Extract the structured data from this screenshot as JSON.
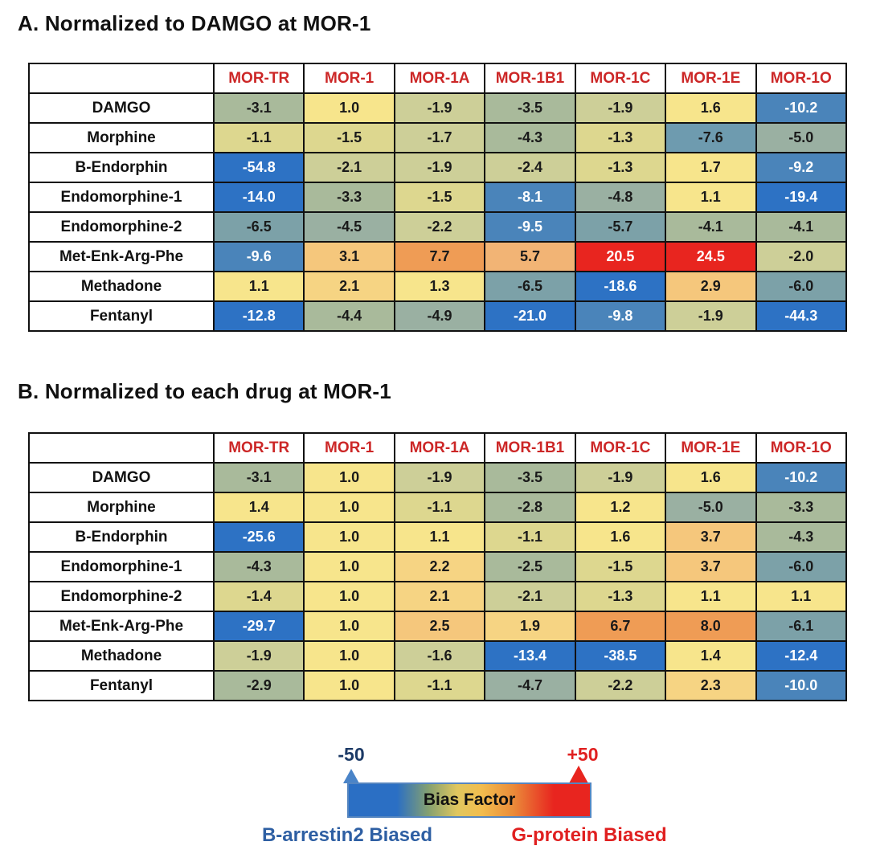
{
  "chart_data": [
    {
      "type": "heatmap",
      "title": "A. Normalized to DAMGO at MOR-1",
      "columns": [
        "MOR-TR",
        "MOR-1",
        "MOR-1A",
        "MOR-1B1",
        "MOR-1C",
        "MOR-1E",
        "MOR-1O"
      ],
      "rows": [
        {
          "label": "DAMGO",
          "values": [
            -3.1,
            1.0,
            -1.9,
            -3.5,
            -1.9,
            1.6,
            -10.2
          ]
        },
        {
          "label": "Morphine",
          "values": [
            -1.1,
            -1.5,
            -1.7,
            -4.3,
            -1.3,
            -7.6,
            -5.0
          ]
        },
        {
          "label": "B-Endorphin",
          "values": [
            -54.8,
            -2.1,
            -1.9,
            -2.4,
            -1.3,
            1.7,
            -9.2
          ]
        },
        {
          "label": "Endomorphine-1",
          "values": [
            -14.0,
            -3.3,
            -1.5,
            -8.1,
            -4.8,
            1.1,
            -19.4
          ]
        },
        {
          "label": "Endomorphine-2",
          "values": [
            -6.5,
            -4.5,
            -2.2,
            -9.5,
            -5.7,
            -4.1,
            -4.1
          ]
        },
        {
          "label": "Met-Enk-Arg-Phe",
          "values": [
            -9.6,
            3.1,
            7.7,
            5.7,
            20.5,
            24.5,
            -2.0
          ]
        },
        {
          "label": "Methadone",
          "values": [
            1.1,
            2.1,
            1.3,
            -6.5,
            -18.6,
            2.9,
            -6.0
          ]
        },
        {
          "label": "Fentanyl",
          "values": [
            -12.8,
            -4.4,
            -4.9,
            -21.0,
            -9.8,
            -1.9,
            -44.3
          ]
        }
      ],
      "value_range": [
        -50,
        50
      ],
      "grid": true,
      "legend_position": "bottom"
    },
    {
      "type": "heatmap",
      "title": "B. Normalized to each drug at MOR-1",
      "columns": [
        "MOR-TR",
        "MOR-1",
        "MOR-1A",
        "MOR-1B1",
        "MOR-1C",
        "MOR-1E",
        "MOR-1O"
      ],
      "rows": [
        {
          "label": "DAMGO",
          "values": [
            -3.1,
            1.0,
            -1.9,
            -3.5,
            -1.9,
            1.6,
            -10.2
          ]
        },
        {
          "label": "Morphine",
          "values": [
            1.4,
            1.0,
            -1.1,
            -2.8,
            1.2,
            -5.0,
            -3.3
          ]
        },
        {
          "label": "B-Endorphin",
          "values": [
            -25.6,
            1.0,
            1.1,
            -1.1,
            1.6,
            3.7,
            -4.3
          ]
        },
        {
          "label": "Endomorphine-1",
          "values": [
            -4.3,
            1.0,
            2.2,
            -2.5,
            -1.5,
            3.7,
            -6.0
          ]
        },
        {
          "label": "Endomorphine-2",
          "values": [
            -1.4,
            1.0,
            2.1,
            -2.1,
            -1.3,
            1.1,
            1.1
          ]
        },
        {
          "label": "Met-Enk-Arg-Phe",
          "values": [
            -29.7,
            1.0,
            2.5,
            1.9,
            6.7,
            8.0,
            -6.1
          ]
        },
        {
          "label": "Methadone",
          "values": [
            -1.9,
            1.0,
            -1.6,
            -13.4,
            -38.5,
            1.4,
            -12.4
          ]
        },
        {
          "label": "Fentanyl",
          "values": [
            -2.9,
            1.0,
            -1.1,
            -4.7,
            -2.2,
            2.3,
            -10.0
          ]
        }
      ],
      "value_range": [
        -50,
        50
      ],
      "grid": true,
      "legend_position": "bottom"
    }
  ],
  "legend": {
    "min_label": "-50",
    "max_label": "+50",
    "bar_label": "Bias Factor",
    "left_label": "B-arrestin2 Biased",
    "right_label": "G-protein Biased",
    "left_color": "#2e5fa3",
    "right_color": "#e02020",
    "gradient_min_color": "#2b6fc4",
    "gradient_mid_color": "#f2bd4e",
    "gradient_max_color": "#e8251f"
  },
  "colors": {
    "header_text": "#cc2727",
    "grid_border": "#111111"
  },
  "color_scale": [
    {
      "min": 10,
      "bg": "#e8251f",
      "fg": "#ffffff"
    },
    {
      "min": 6,
      "bg": "#ef9c55",
      "fg": "#1a1a1a"
    },
    {
      "min": 4.5,
      "bg": "#f2b475",
      "fg": "#1a1a1a"
    },
    {
      "min": 2.4,
      "bg": "#f5c77c",
      "fg": "#1a1a1a"
    },
    {
      "min": 1.8,
      "bg": "#f6d483",
      "fg": "#1a1a1a"
    },
    {
      "min": 0,
      "bg": "#f7e58c",
      "fg": "#1a1a1a"
    },
    {
      "min": -1.5,
      "bg": "#ddd78f",
      "fg": "#1a1a1a"
    },
    {
      "min": -2.4,
      "bg": "#cdcf98",
      "fg": "#1a1a1a"
    },
    {
      "min": -4.4,
      "bg": "#a9ba9b",
      "fg": "#1a1a1a"
    },
    {
      "min": -5.4,
      "bg": "#9ab0a2",
      "fg": "#1a1a1a"
    },
    {
      "min": -7.0,
      "bg": "#7ca1a8",
      "fg": "#1a1a1a"
    },
    {
      "min": -8.0,
      "bg": "#6e9baf",
      "fg": "#1a1a1a"
    },
    {
      "min": -10.5,
      "bg": "#4a84ba",
      "fg": "#ffffff"
    },
    {
      "min": -999,
      "bg": "#2d72c4",
      "fg": "#ffffff"
    }
  ]
}
